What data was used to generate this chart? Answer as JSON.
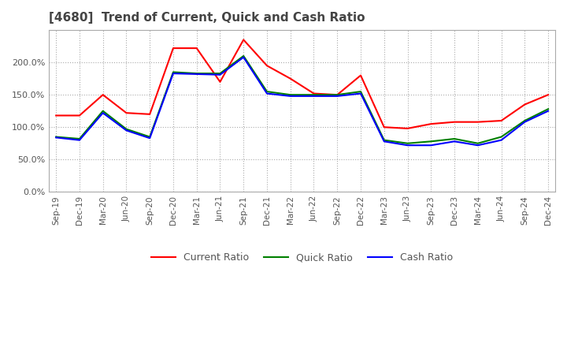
{
  "title": "[4680]  Trend of Current, Quick and Cash Ratio",
  "x_labels": [
    "Sep-19",
    "Dec-19",
    "Mar-20",
    "Jun-20",
    "Sep-20",
    "Dec-20",
    "Mar-21",
    "Jun-21",
    "Sep-21",
    "Dec-21",
    "Mar-22",
    "Jun-22",
    "Sep-22",
    "Dec-22",
    "Mar-23",
    "Jun-23",
    "Sep-23",
    "Dec-23",
    "Mar-24",
    "Jun-24",
    "Sep-24",
    "Dec-24"
  ],
  "current_ratio": [
    118.0,
    118.0,
    150.0,
    122.0,
    120.0,
    222.0,
    222.0,
    170.0,
    235.0,
    195.0,
    175.0,
    152.0,
    150.0,
    180.0,
    100.0,
    98.0,
    105.0,
    108.0,
    108.0,
    110.0,
    135.0,
    150.0
  ],
  "quick_ratio": [
    85.0,
    82.0,
    125.0,
    97.0,
    85.0,
    185.0,
    183.0,
    183.0,
    210.0,
    155.0,
    150.0,
    150.0,
    150.0,
    155.0,
    80.0,
    75.0,
    78.0,
    82.0,
    75.0,
    85.0,
    110.0,
    128.0
  ],
  "cash_ratio": [
    84.0,
    80.0,
    122.0,
    95.0,
    83.0,
    183.0,
    182.0,
    181.0,
    208.0,
    152.0,
    148.0,
    148.0,
    148.0,
    152.0,
    78.0,
    72.0,
    72.0,
    78.0,
    72.0,
    80.0,
    108.0,
    125.0
  ],
  "current_color": "#ff0000",
  "quick_color": "#008000",
  "cash_color": "#0000ff",
  "ylim": [
    0,
    250
  ],
  "yticks": [
    0,
    50,
    100,
    150,
    200
  ],
  "background_color": "#ffffff",
  "grid_color": "#aaaaaa"
}
